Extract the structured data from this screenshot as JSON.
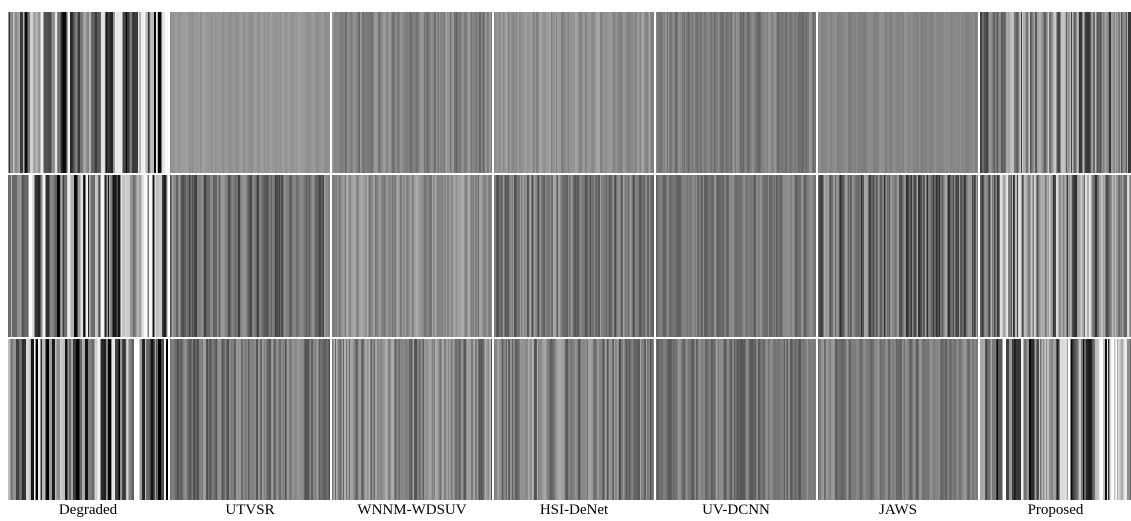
{
  "labels": [
    "Degraded",
    "UTVSR",
    "WNNM-WDSUV",
    "HSI-DeNet",
    "UV-DCNN",
    "JAWS",
    "Proposed"
  ]
}
